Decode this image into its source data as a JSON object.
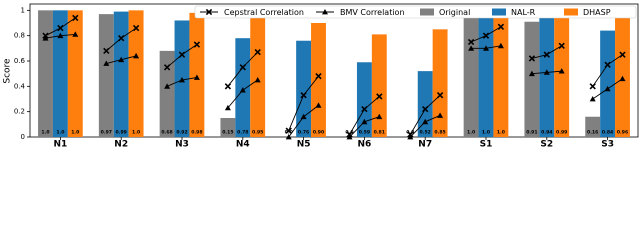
{
  "chart_data": {
    "type": "bar",
    "ylabel": "Score",
    "categories": [
      "N1",
      "N2",
      "N3",
      "N4",
      "N5",
      "N6",
      "N7",
      "S1",
      "S2",
      "S3"
    ],
    "ylim": [
      0,
      1.05
    ],
    "yticks": [
      0,
      0.2,
      0.4,
      0.6,
      0.8,
      1.0
    ],
    "grid": false,
    "legend": "top-right",
    "series": [
      {
        "name": "Original",
        "color": "#808080",
        "values": [
          1.0,
          0.97,
          0.68,
          0.15,
          0.0,
          0.0,
          0.0,
          1.0,
          0.91,
          0.16
        ],
        "value_labels": [
          "1.0",
          "0.97",
          "0.68",
          "0.15",
          "0.0",
          "0.0",
          "0.0",
          "1.0",
          "0.91",
          "0.16"
        ]
      },
      {
        "name": "NAL-R",
        "color": "#1f77b4",
        "values": [
          1.0,
          0.99,
          0.92,
          0.78,
          0.76,
          0.59,
          0.52,
          1.0,
          0.94,
          0.84
        ],
        "value_labels": [
          "1.0",
          "0.99",
          "0.92",
          "0.78",
          "0.76",
          "0.59",
          "0.52",
          "1.0",
          "0.94",
          "0.84"
        ]
      },
      {
        "name": "DHASP",
        "color": "#ff7f0e",
        "values": [
          1.0,
          1.0,
          0.98,
          0.95,
          0.9,
          0.81,
          0.85,
          1.0,
          0.99,
          0.96
        ],
        "value_labels": [
          "1.0",
          "1.0",
          "0.98",
          "0.95",
          "0.90",
          "0.81",
          "0.85",
          "1.0",
          "0.99",
          "0.96"
        ]
      }
    ],
    "lines": [
      {
        "name": "Cepstral Correlation",
        "color": "#000000",
        "marker": "x",
        "values": [
          [
            0.8,
            0.86,
            0.94
          ],
          [
            0.68,
            0.78,
            0.86
          ],
          [
            0.55,
            0.65,
            0.73
          ],
          [
            0.4,
            0.55,
            0.67
          ],
          [
            0.05,
            0.33,
            0.48
          ],
          [
            0.02,
            0.22,
            0.32
          ],
          [
            0.02,
            0.22,
            0.33
          ],
          [
            0.75,
            0.8,
            0.87
          ],
          [
            0.62,
            0.65,
            0.72
          ],
          [
            0.4,
            0.57,
            0.65
          ]
        ]
      },
      {
        "name": "BMV Correlation",
        "color": "#000000",
        "marker": "triangle",
        "values": [
          [
            0.78,
            0.8,
            0.81
          ],
          [
            0.58,
            0.61,
            0.64
          ],
          [
            0.4,
            0.45,
            0.47
          ],
          [
            0.23,
            0.37,
            0.45
          ],
          [
            0.0,
            0.16,
            0.25
          ],
          [
            0.0,
            0.12,
            0.16
          ],
          [
            0.0,
            0.12,
            0.17
          ],
          [
            0.7,
            0.7,
            0.72
          ],
          [
            0.5,
            0.51,
            0.52
          ],
          [
            0.3,
            0.38,
            0.46
          ]
        ]
      }
    ]
  }
}
